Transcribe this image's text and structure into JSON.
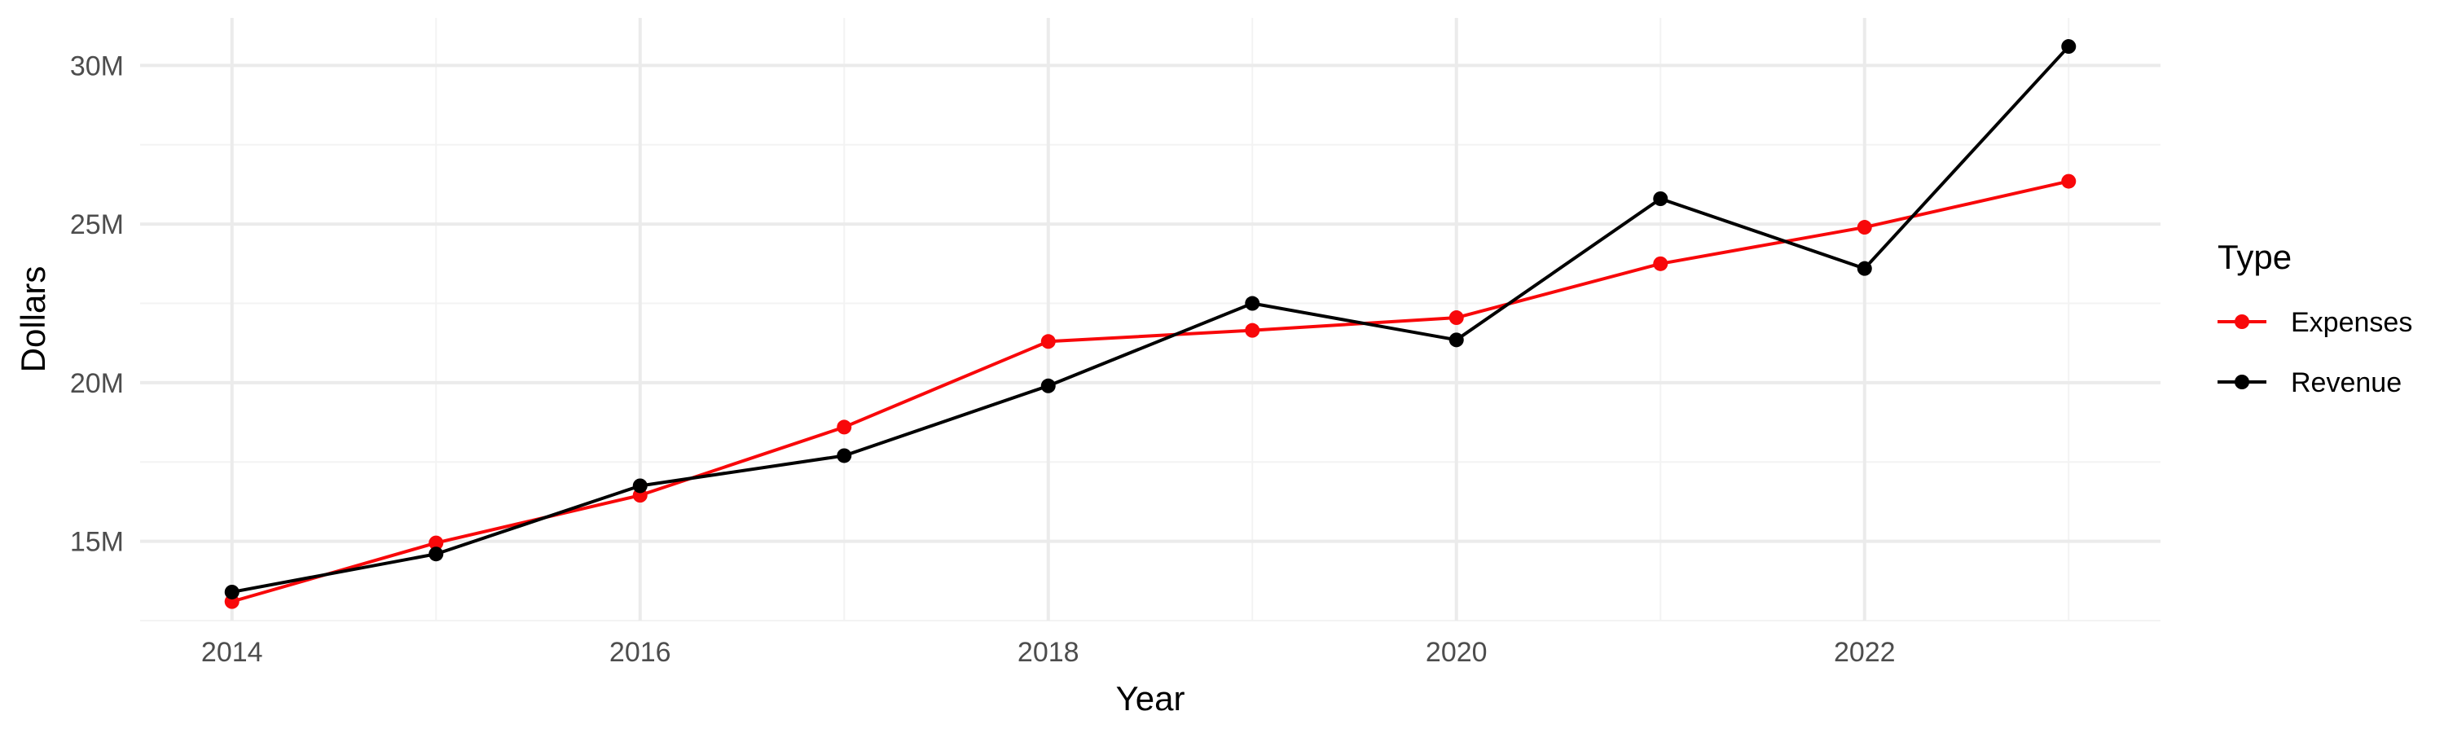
{
  "chart_data": {
    "type": "line",
    "title": "",
    "xlabel": "Year",
    "ylabel": "Dollars",
    "x": [
      2014,
      2015,
      2016,
      2017,
      2018,
      2019,
      2020,
      2021,
      2022,
      2023
    ],
    "x_ticks": [
      2014,
      2016,
      2018,
      2020,
      2022
    ],
    "x_tick_labels": [
      "2014",
      "2016",
      "2018",
      "2020",
      "2022"
    ],
    "xlim": [
      2013.55,
      2023.45
    ],
    "y_ticks": [
      15000000,
      20000000,
      25000000,
      30000000
    ],
    "y_tick_labels": [
      "15M",
      "20M",
      "25M",
      "30M"
    ],
    "ylim": [
      12500000,
      31500000
    ],
    "grid": true,
    "legend": {
      "title": "Type",
      "placement": "right"
    },
    "series": [
      {
        "name": "Expenses",
        "color": "#f8080a",
        "values": [
          13100000,
          14950000,
          16450000,
          18600000,
          21300000,
          21650000,
          22050000,
          23750000,
          24900000,
          26350000
        ]
      },
      {
        "name": "Revenue",
        "color": "#000000",
        "values": [
          13400000,
          14600000,
          16750000,
          17700000,
          19900000,
          22500000,
          21350000,
          25800000,
          23600000,
          30600000
        ]
      }
    ]
  }
}
